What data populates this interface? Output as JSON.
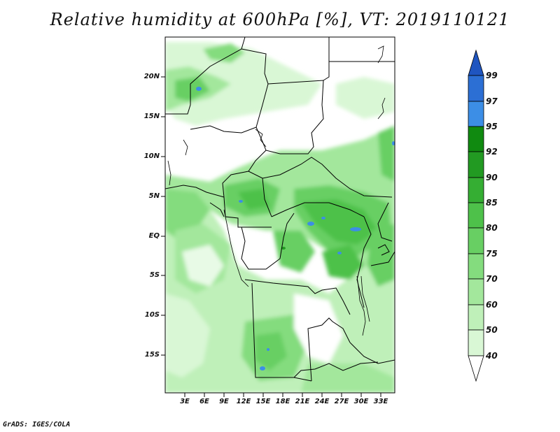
{
  "title": "Relative humidity at 600hPa [%], VT: 2019110121",
  "credit": "GrADS: IGES/COLA",
  "map": {
    "lat_labels": [
      "20N",
      "15N",
      "10N",
      "5N",
      "EQ",
      "5S",
      "10S",
      "15S"
    ],
    "lon_labels": [
      "3E",
      "6E",
      "9E",
      "12E",
      "15E",
      "18E",
      "21E",
      "24E",
      "27E",
      "30E",
      "33E"
    ]
  },
  "colorbar": {
    "levels": [
      "40",
      "50",
      "60",
      "70",
      "75",
      "80",
      "85",
      "90",
      "92",
      "95",
      "97",
      "99"
    ],
    "colors": [
      "#f0fcf0",
      "#d9f7d5",
      "#bff0b9",
      "#a3e79c",
      "#84dc7e",
      "#68cf63",
      "#4ec14a",
      "#35ae33",
      "#229a22",
      "#108a10",
      "#3c8ee6",
      "#2c6fd4",
      "#1f55c0"
    ]
  },
  "chart_data": {
    "type": "heatmap",
    "title": "Relative humidity at 600hPa [%], VT: 2019110121",
    "variable": "Relative humidity at 600hPa",
    "units": "%",
    "valid_time": "2019110121",
    "contour_levels": [
      40,
      50,
      60,
      70,
      75,
      80,
      85,
      90,
      92,
      95,
      97,
      99
    ],
    "x_ticks": [
      "3E",
      "6E",
      "9E",
      "12E",
      "15E",
      "18E",
      "21E",
      "24E",
      "27E",
      "30E",
      "33E"
    ],
    "y_ticks": [
      "20N",
      "15N",
      "10N",
      "5N",
      "EQ",
      "5S",
      "10S",
      "15S"
    ]
  }
}
